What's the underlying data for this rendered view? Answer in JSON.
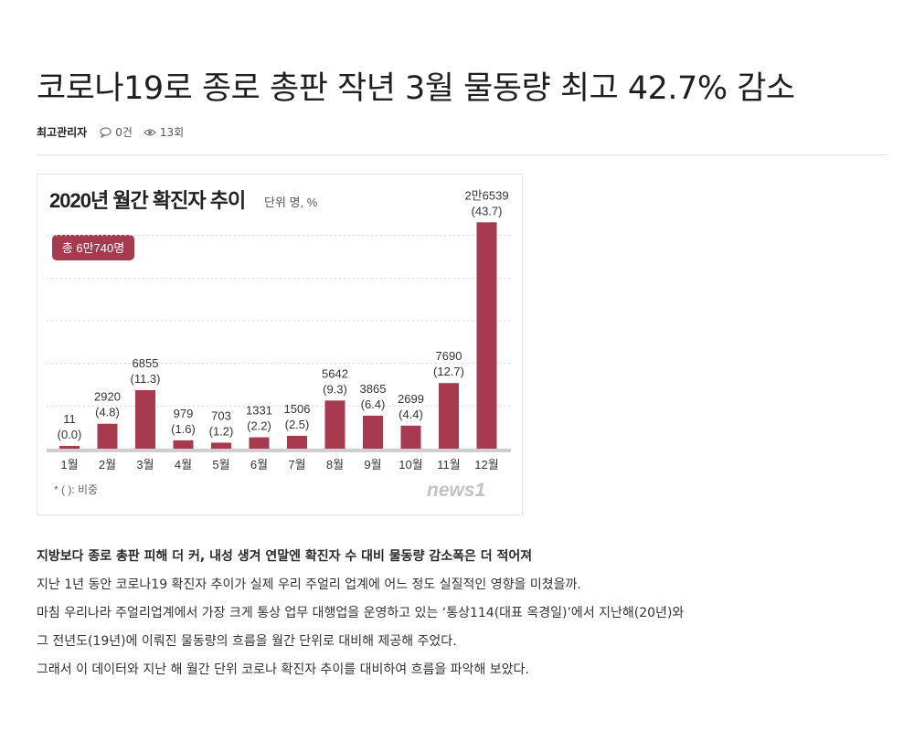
{
  "article": {
    "title": "코로나19로 종로 총판 작년 3월 물동량 최고 42.7% 감소",
    "author": "최고관리자",
    "comments": "0건",
    "views": "13회"
  },
  "chart_data": {
    "type": "bar",
    "title": "2020년 월간 확진자 추이",
    "unit_label": "단위 명, %",
    "total_badge": "총 6만740명",
    "footnote": "* ( ): 비중",
    "source_logo": "news1",
    "bar_color": "#a83a50",
    "categories": [
      "1월",
      "2월",
      "3월",
      "4월",
      "5월",
      "6월",
      "7월",
      "8월",
      "9월",
      "10월",
      "11월",
      "12월"
    ],
    "values": [
      11,
      2920,
      6855,
      979,
      703,
      1331,
      1506,
      5642,
      3865,
      2699,
      7690,
      26539
    ],
    "value_labels": [
      "11",
      "2920",
      "6855",
      "979",
      "703",
      "1331",
      "1506",
      "5642",
      "3865",
      "2699",
      "7690",
      "2만6539"
    ],
    "share_labels": [
      "(0.0)",
      "(4.8)",
      "(11.3)",
      "(1.6)",
      "(1.2)",
      "(2.2)",
      "(2.5)",
      "(9.3)",
      "(6.4)",
      "(4.4)",
      "(12.7)",
      "(43.7)"
    ],
    "ylim": [
      0,
      30000
    ],
    "grid": true
  },
  "body": {
    "lead": "지방보다 종로 총판 피해 더 커, 내성 생겨 연말엔 확진자 수 대비 물동량 감소폭은 더 적어져",
    "paragraphs": [
      "지난 1년 동안 코로나19 확진자 추이가 실제 우리 주얼리 업계에 어느 정도 실질적인 영향을 미쳤을까.",
      "마침 우리나라 주얼리업계에서 가장 크게 통상 업무 대행업을 운영하고 있는 ‘통상114(대표 옥경일)’에서 지난해(20년)와",
      "그 전년도(19년)에 이뤄진 물동량의 흐름을 월간 단위로 대비해 제공해 주었다.",
      "그래서 이 데이터와 지난 해 월간 단위 코로나 확진자 추이를 대비하여 흐름을 파악해 보았다."
    ]
  }
}
